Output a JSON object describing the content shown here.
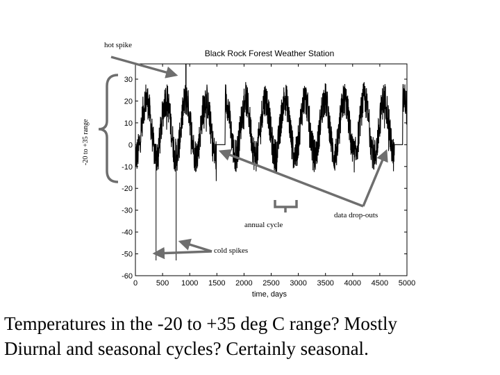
{
  "chart_data": {
    "type": "line",
    "title": "Black Rock Forest Weather Station",
    "xlabel": "time, days",
    "ylabel": "",
    "xlim": [
      0,
      5000
    ],
    "ylim": [
      -60,
      35
    ],
    "xticks": [
      0,
      500,
      1000,
      1500,
      2000,
      2500,
      3000,
      3500,
      4000,
      4500,
      5000
    ],
    "yticks": [
      30,
      20,
      10,
      0,
      -10,
      -20,
      -30,
      -40,
      -50,
      -60
    ],
    "xtick_labels": [
      "0",
      "500",
      "1000",
      "1500",
      "2000",
      "2500",
      "3000",
      "3500",
      "4000",
      "4500",
      "5000"
    ],
    "ytick_labels": [
      "30",
      "20",
      "10",
      "0",
      "-10",
      "-20",
      "-30",
      "-40",
      "-50",
      "-60"
    ],
    "series": [
      {
        "description": "daily temperature, seasonal cycle of about 365 days between about -15 and 30 with diurnal scatter",
        "annual_period_days": 365,
        "mean": 8,
        "seasonal_amplitude": 13,
        "noise_amplitude": 8,
        "dropouts": [
          {
            "x0": 1490,
            "x1": 1650,
            "y": 0
          },
          {
            "x0": 4770,
            "x1": 4920,
            "y": 0
          }
        ],
        "cold_spikes": [
          {
            "x": 380,
            "y": -53
          },
          {
            "x": 750,
            "y": -53
          }
        ],
        "hot_spike": {
          "x": 930,
          "y": 37
        }
      }
    ],
    "annotations": [
      {
        "id": "hot",
        "text": "hot spike"
      },
      {
        "id": "range",
        "text": "-20 to +35 range"
      },
      {
        "id": "annual",
        "text": "annual cycle"
      },
      {
        "id": "dropouts",
        "text": "data drop-outs"
      },
      {
        "id": "cold",
        "text": "cold spikes"
      }
    ]
  },
  "caption": {
    "line1": "Temperatures in the -20 to +35 deg C range? Mostly",
    "line2": "Diurnal and seasonal cycles? Certainly seasonal."
  },
  "colors": {
    "data": "#000000",
    "annotation_arrow": "#6e6e6e",
    "axis": "#000000"
  }
}
